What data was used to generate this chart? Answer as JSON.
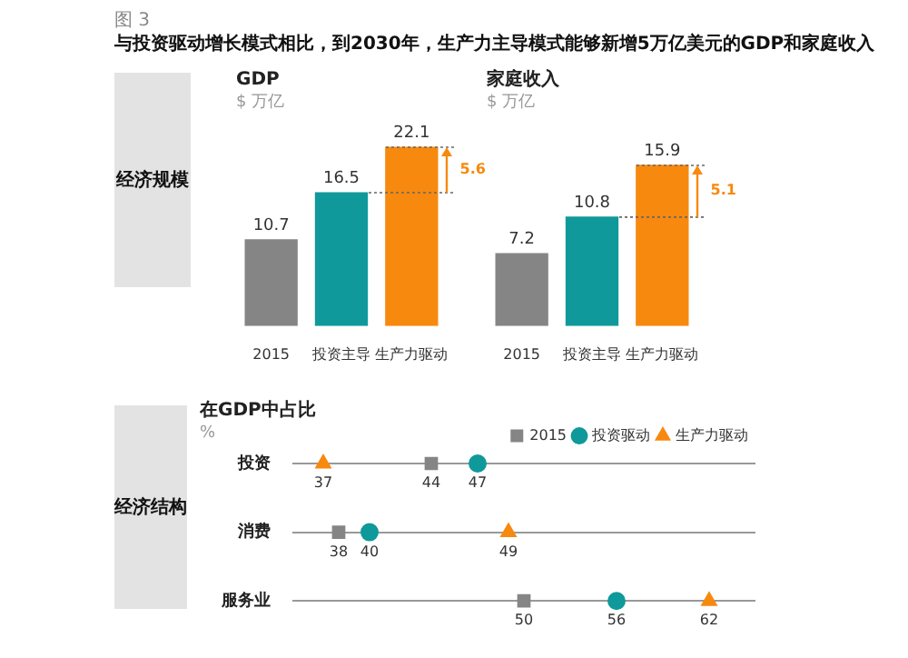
{
  "chart_data": [
    {
      "type": "bar",
      "title": "GDP",
      "subtitle": "$ 万亿",
      "annotations": [
        "图 3",
        "与投资驱动增长模式相比，到2030年，生产力主导模式能够新增5万亿美元的GDP和家庭收入",
        "经济规模",
        "5.6"
      ],
      "categories": [
        "2015",
        "投资主导",
        "生产力驱动"
      ],
      "values": [
        10.7,
        16.5,
        22.1
      ],
      "colors": [
        "#858585",
        "#10999b",
        "#f7890f"
      ],
      "data_labels": true,
      "tick_labels": "x",
      "grid": false,
      "legend": false
    },
    {
      "type": "bar",
      "title": "家庭收入",
      "subtitle": "$ 万亿",
      "annotations": [
        "5.1"
      ],
      "categories": [
        "2015",
        "投资主导",
        "生产力驱动"
      ],
      "values": [
        7.2,
        10.8,
        15.9
      ],
      "colors": [
        "#858585",
        "#10999b",
        "#f7890f"
      ],
      "data_labels": true,
      "tick_labels": "x",
      "grid": false,
      "legend": false
    },
    {
      "type": "scatter",
      "orientation": "horizontal",
      "title": "在GDP中占比",
      "subtitle": "%",
      "annotations": [
        "经济结构"
      ],
      "categories": [
        "投资",
        "消费",
        "服务业"
      ],
      "series": [
        {
          "name": "2015",
          "color": "#858585",
          "marker": "square",
          "values": [
            44,
            38,
            50
          ]
        },
        {
          "name": "投资驱动",
          "color": "#10999b",
          "marker": "circle",
          "values": [
            47,
            40,
            56
          ]
        },
        {
          "name": "生产力驱动",
          "color": "#f7890f",
          "marker": "triangle",
          "values": [
            37,
            49,
            62
          ]
        }
      ],
      "data_labels": true,
      "tick_labels": "y",
      "grid": "y",
      "legend": "top right"
    }
  ]
}
